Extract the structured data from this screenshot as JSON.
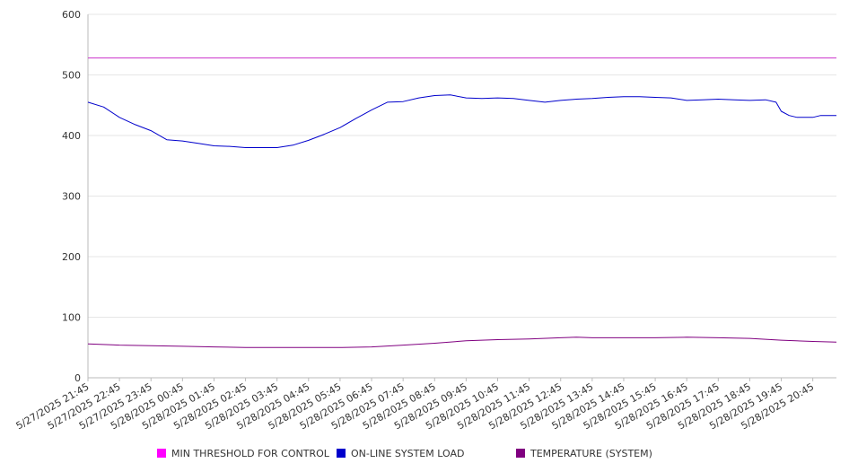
{
  "chart_data": {
    "type": "line",
    "x": [
      "5/27/2025 21:45",
      "5/27/2025 22:45",
      "5/27/2025 23:45",
      "5/28/2025 00:45",
      "5/28/2025 01:45",
      "5/28/2025 02:45",
      "5/28/2025 03:45",
      "5/28/2025 04:45",
      "5/28/2025 05:45",
      "5/28/2025 06:45",
      "5/28/2025 07:45",
      "5/28/2025 08:45",
      "5/28/2025 09:45",
      "5/28/2025 10:45",
      "5/28/2025 11:45",
      "5/28/2025 12:45",
      "5/28/2025 13:45",
      "5/28/2025 14:45",
      "5/28/2025 15:45",
      "5/28/2025 16:45",
      "5/28/2025 17:45",
      "5/28/2025 18:45",
      "5/28/2025 19:45",
      "5/28/2025 20:45"
    ],
    "x_end": "5/28/2025 21:30",
    "series": [
      {
        "name": "MIN THRESHOLD FOR CONTROL",
        "color": "#cc33cc",
        "points": [
          [
            "5/27/2025 21:45",
            528
          ],
          [
            "5/28/2025 21:30",
            528
          ]
        ]
      },
      {
        "name": "ON-LINE SYSTEM LOAD",
        "color": "#0000cc",
        "points": [
          [
            "5/27/2025 21:45",
            455
          ],
          [
            "5/27/2025 22:15",
            447
          ],
          [
            "5/27/2025 22:45",
            430
          ],
          [
            "5/27/2025 23:15",
            418
          ],
          [
            "5/27/2025 23:45",
            408
          ],
          [
            "5/28/2025 00:15",
            393
          ],
          [
            "5/28/2025 00:45",
            391
          ],
          [
            "5/28/2025 01:15",
            387
          ],
          [
            "5/28/2025 01:45",
            383
          ],
          [
            "5/28/2025 02:15",
            382
          ],
          [
            "5/28/2025 02:45",
            380
          ],
          [
            "5/28/2025 03:15",
            380
          ],
          [
            "5/28/2025 03:45",
            380
          ],
          [
            "5/28/2025 04:15",
            384
          ],
          [
            "5/28/2025 04:45",
            392
          ],
          [
            "5/28/2025 05:15",
            402
          ],
          [
            "5/28/2025 05:45",
            413
          ],
          [
            "5/28/2025 06:15",
            428
          ],
          [
            "5/28/2025 06:45",
            442
          ],
          [
            "5/28/2025 07:15",
            455
          ],
          [
            "5/28/2025 07:45",
            456
          ],
          [
            "5/28/2025 08:15",
            462
          ],
          [
            "5/28/2025 08:45",
            466
          ],
          [
            "5/28/2025 09:15",
            467
          ],
          [
            "5/28/2025 09:45",
            462
          ],
          [
            "5/28/2025 10:15",
            461
          ],
          [
            "5/28/2025 10:45",
            462
          ],
          [
            "5/28/2025 11:15",
            461
          ],
          [
            "5/28/2025 11:45",
            458
          ],
          [
            "5/28/2025 12:15",
            455
          ],
          [
            "5/28/2025 12:45",
            458
          ],
          [
            "5/28/2025 13:15",
            460
          ],
          [
            "5/28/2025 13:45",
            461
          ],
          [
            "5/28/2025 14:15",
            463
          ],
          [
            "5/28/2025 14:45",
            464
          ],
          [
            "5/28/2025 15:15",
            464
          ],
          [
            "5/28/2025 15:45",
            463
          ],
          [
            "5/28/2025 16:15",
            462
          ],
          [
            "5/28/2025 16:45",
            458
          ],
          [
            "5/28/2025 17:15",
            459
          ],
          [
            "5/28/2025 17:45",
            460
          ],
          [
            "5/28/2025 18:15",
            459
          ],
          [
            "5/28/2025 18:45",
            458
          ],
          [
            "5/28/2025 19:15",
            459
          ],
          [
            "5/28/2025 19:35",
            455
          ],
          [
            "5/28/2025 19:45",
            440
          ],
          [
            "5/28/2025 20:00",
            433
          ],
          [
            "5/28/2025 20:15",
            430
          ],
          [
            "5/28/2025 20:45",
            430
          ],
          [
            "5/28/2025 21:00",
            433
          ],
          [
            "5/28/2025 21:30",
            433
          ]
        ]
      },
      {
        "name": "TEMPERATURE (SYSTEM)",
        "color": "#800080",
        "points": [
          [
            "5/27/2025 21:45",
            56
          ],
          [
            "5/27/2025 22:45",
            54
          ],
          [
            "5/27/2025 23:45",
            53
          ],
          [
            "5/28/2025 00:45",
            52
          ],
          [
            "5/28/2025 01:45",
            51
          ],
          [
            "5/28/2025 02:45",
            50
          ],
          [
            "5/28/2025 03:45",
            50
          ],
          [
            "5/28/2025 04:45",
            50
          ],
          [
            "5/28/2025 05:45",
            50
          ],
          [
            "5/28/2025 06:45",
            51
          ],
          [
            "5/28/2025 07:45",
            54
          ],
          [
            "5/28/2025 08:45",
            57
          ],
          [
            "5/28/2025 09:45",
            61
          ],
          [
            "5/28/2025 10:45",
            63
          ],
          [
            "5/28/2025 11:45",
            64
          ],
          [
            "5/28/2025 12:45",
            66
          ],
          [
            "5/28/2025 13:15",
            67
          ],
          [
            "5/28/2025 13:45",
            66
          ],
          [
            "5/28/2025 14:45",
            66
          ],
          [
            "5/28/2025 15:45",
            66
          ],
          [
            "5/28/2025 16:45",
            67
          ],
          [
            "5/28/2025 17:45",
            66
          ],
          [
            "5/28/2025 18:45",
            65
          ],
          [
            "5/28/2025 19:45",
            62
          ],
          [
            "5/28/2025 20:45",
            60
          ],
          [
            "5/28/2025 21:30",
            59
          ]
        ]
      }
    ],
    "ylim": [
      0,
      600
    ],
    "yticks": [
      0,
      100,
      200,
      300,
      400,
      500,
      600
    ],
    "grid": true,
    "legend_position": "bottom"
  }
}
